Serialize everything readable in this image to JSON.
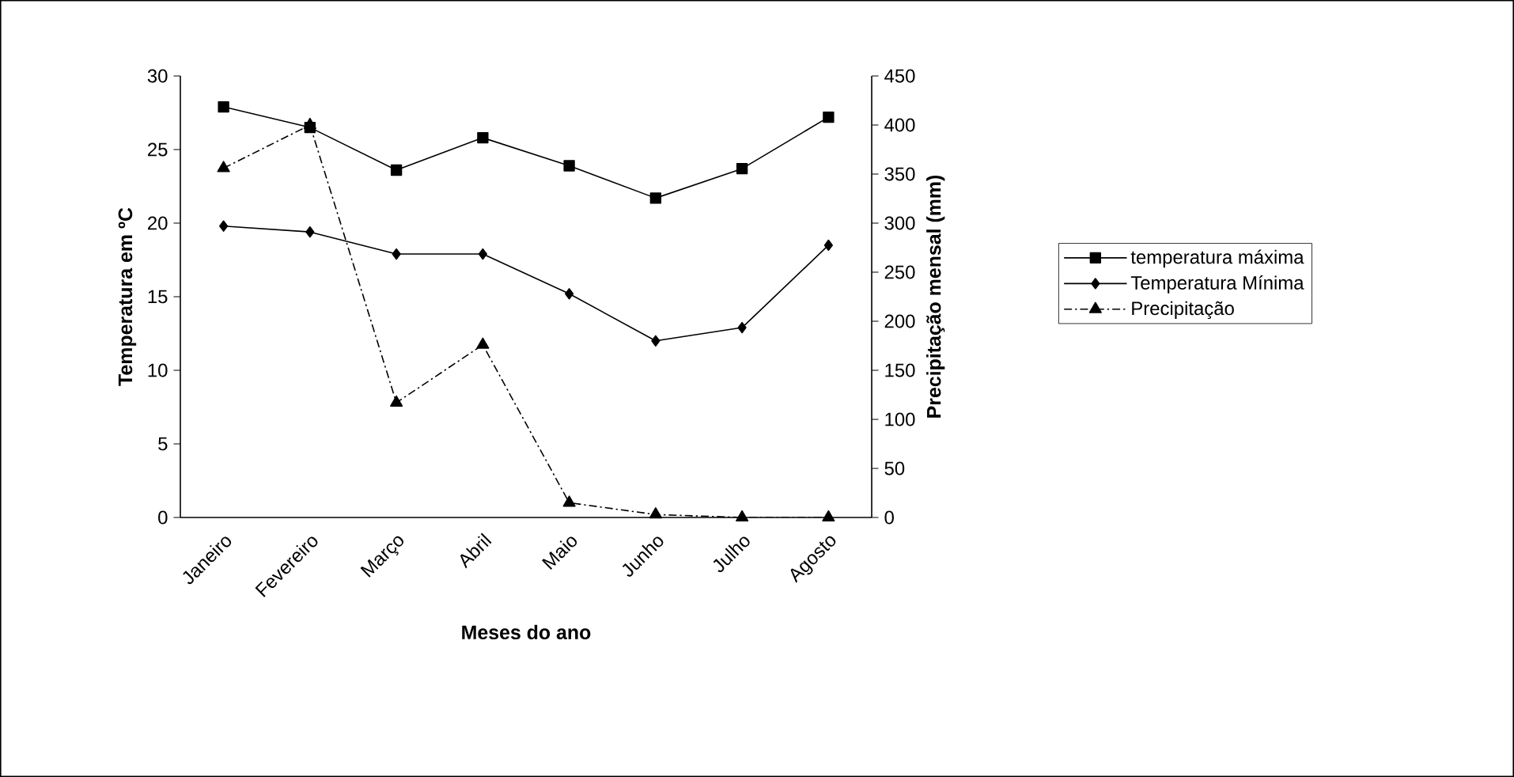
{
  "chart_data": {
    "type": "line",
    "categories": [
      "Janeiro",
      "Fevereiro",
      "Março",
      "Abril",
      "Maio",
      "Junho",
      "Julho",
      "Agosto"
    ],
    "series": [
      {
        "name": "temperatura máxima",
        "color": "#000000",
        "marker": "square",
        "line_style": "solid",
        "values": [
          27.9,
          26.5,
          23.6,
          25.8,
          23.9,
          21.7,
          23.7,
          27.2
        ]
      },
      {
        "name": "Temperatura Mínima",
        "color": "#000000",
        "marker": "diamond",
        "line_style": "solid",
        "values": [
          19.8,
          19.4,
          17.9,
          17.9,
          15.2,
          12.0,
          12.9,
          18.5
        ]
      },
      {
        "name": "Precipitação",
        "color": "#000000",
        "marker": "triangle",
        "line_style": "dashed",
        "axis": "y2",
        "values": [
          356,
          400,
          117,
          176,
          15,
          3,
          0,
          0
        ]
      }
    ],
    "xlabel": "Meses do ano",
    "ylabel": "Temperatura em ºC",
    "y2label": "Precipitação mensal (mm)",
    "ylim": [
      0,
      30
    ],
    "yticks": [
      0,
      5,
      10,
      15,
      20,
      25,
      30
    ],
    "y2lim": [
      0,
      450
    ],
    "y2ticks": [
      0,
      50,
      100,
      150,
      200,
      250,
      300,
      350,
      400,
      450
    ],
    "grid": false,
    "legend": "right"
  }
}
